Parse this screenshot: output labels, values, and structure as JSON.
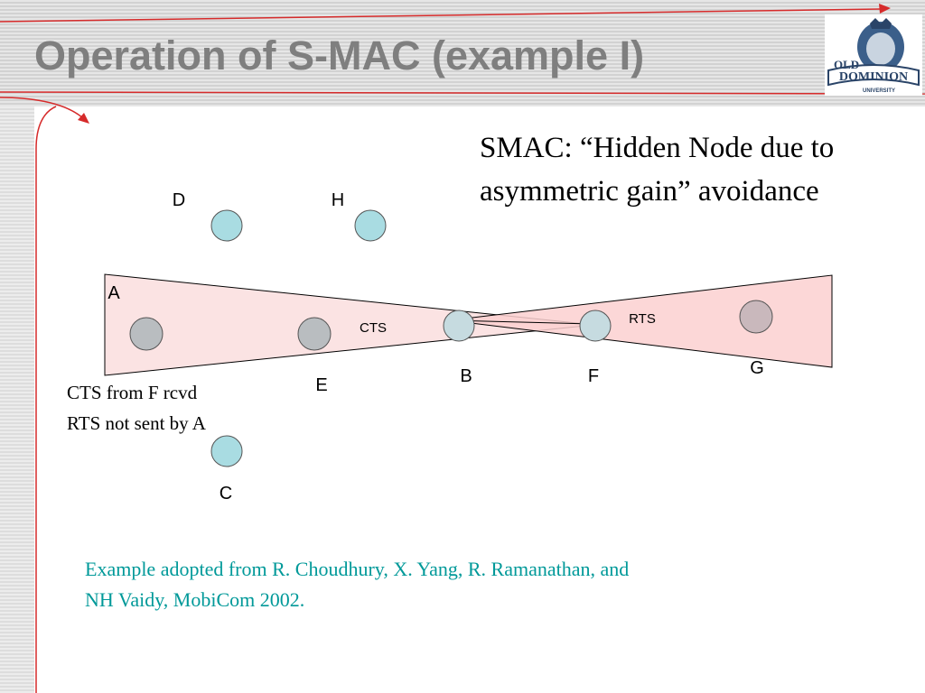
{
  "slide": {
    "title": "Operation of S-MAC (example I)",
    "heading_lines": [
      "SMAC: “Hidden Node due to",
      "asymmetric gain” avoidance"
    ],
    "notes": [
      "CTS from F rcvd",
      "RTS not sent by A"
    ],
    "citation_lines": [
      "Example adopted from R. Choudhury, X. Yang, R. Ramanathan, and",
      "NH Vaidy, MobiCom 2002."
    ]
  },
  "logo": {
    "text_top": "OLD",
    "text_main": "DOMINION",
    "text_sub": "UNIVERSITY"
  },
  "diagram": {
    "nodes": [
      {
        "id": "A",
        "label": "A",
        "color": "#b9bdc0"
      },
      {
        "id": "E",
        "label": "E",
        "color": "#b9bdc0"
      },
      {
        "id": "B",
        "label": "B",
        "color": "#c6dbe0"
      },
      {
        "id": "F",
        "label": "F",
        "color": "#c6dbe0"
      },
      {
        "id": "G",
        "label": "G",
        "color": "#c9b8bc"
      },
      {
        "id": "D",
        "label": "D",
        "color": "#a9dce2"
      },
      {
        "id": "H",
        "label": "H",
        "color": "#a9dce2"
      },
      {
        "id": "C",
        "label": "C",
        "color": "#a9dce2"
      }
    ],
    "messages": [
      {
        "id": "cts",
        "label": "CTS"
      },
      {
        "id": "rts",
        "label": "RTS"
      }
    ],
    "colors": {
      "cts_region_fill": "#fbe3e3",
      "rts_region_fill": "#fbd0d0",
      "outline": "#000000",
      "accent_line": "#d62b2b"
    }
  }
}
